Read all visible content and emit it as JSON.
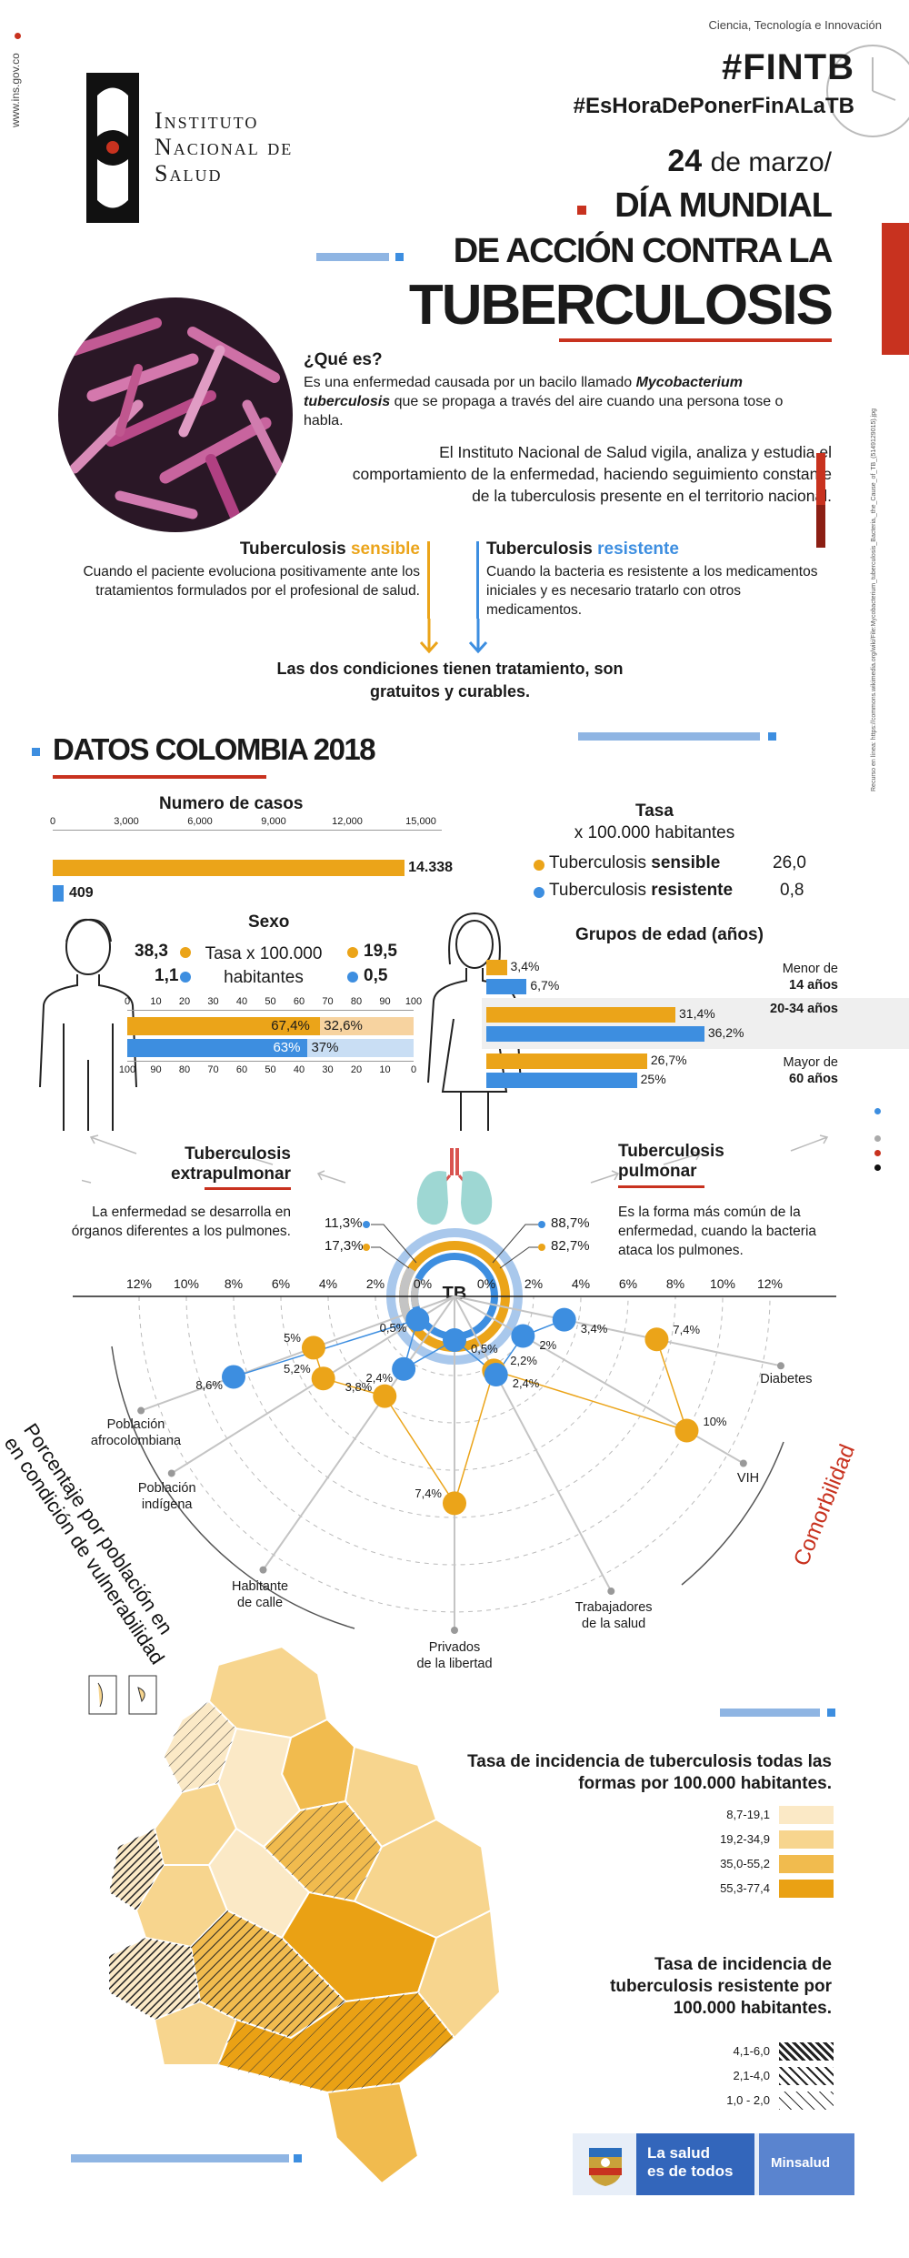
{
  "header": {
    "site_url": "www.ins.gov.co",
    "category": "Ciencia, Tecnología e Innovación",
    "hashtag_main": "#FINTB",
    "hashtag_secondary": "#EsHoraDePonerFinALaTB",
    "logo_line1": "Instituto",
    "logo_line2": "Nacional de",
    "logo_line3": "Salud",
    "date_day": "24",
    "date_month": "de marzo/",
    "title_line1": "DÍA MUNDIAL",
    "title_line2": "DE ACCIÓN CONTRA LA",
    "title_line3": "TUBERCULOSIS",
    "image_credit": "Recurso en línea: https://commons.wikimedia.org/wiki/File:Mycobacterium_tuberculosis_Bacteria,_the_Cause_of_TB_(5149129015).jpg"
  },
  "intro": {
    "question": "¿Qué es?",
    "definition_pre": "Es una enfermedad causada por un bacilo llamado ",
    "definition_italic": "Mycobacterium tuberculosis",
    "definition_post": " que se propaga a través del aire cuando una persona tose o habla.",
    "ins_text": "El Instituto Nacional de Salud vigila, analiza y estudia el comportamiento de la enfermedad, haciendo seguimiento constante de la tuberculosis presente en el territorio nacional."
  },
  "types": {
    "sensible_title_a": "Tuberculosis ",
    "sensible_title_b": "sensible",
    "sensible_text": "Cuando el paciente evoluciona positivamente ante los tratamientos formulados por el profesional de salud.",
    "resistente_title_a": "Tuberculosis ",
    "resistente_title_b": "resistente",
    "resistente_text": "Cuando la bacteria es resistente  a los medicamentos iniciales y es necesario tratarlo con otros medicamentos.",
    "conclusion": "Las dos condiciones tienen tratamiento, son gratuitos y curables."
  },
  "section_title": "DATOS COLOMBIA 2018",
  "colors": {
    "orange": "#eba419",
    "blue": "#3d8ee0",
    "red": "#c8321f",
    "teal": "#9ed7d3"
  },
  "cases": {
    "title": "Numero  de casos",
    "ticks": [
      "0",
      "3,000",
      "6,000",
      "9,000",
      "12,000",
      "15,000"
    ],
    "sensible_value": "14.338",
    "resistente_value": "409",
    "sensible_num": 14338,
    "resistente_num": 409,
    "max": 15000
  },
  "rate": {
    "title_line1": "Tasa",
    "title_line2": "x 100.000 habitantes",
    "sensible_label_a": "Tuberculosis ",
    "sensible_label_b": "sensible",
    "sensible_value": "26,0",
    "resistente_label_a": "Tuberculosis ",
    "resistente_label_b": "resistente",
    "resistente_value": "0,8"
  },
  "sex": {
    "title": "Sexo",
    "center_line1": "Tasa x 100.000",
    "center_line2": "habitantes",
    "male_sensible": "38,3",
    "male_resistente": "1,1",
    "female_sensible": "19,5",
    "female_resistente": "0,5",
    "ticks_top": [
      "0",
      "10",
      "20",
      "30",
      "40",
      "50",
      "60",
      "70",
      "80",
      "90",
      "100"
    ],
    "ticks_bottom": [
      "100",
      "90",
      "80",
      "70",
      "60",
      "50",
      "40",
      "30",
      "20",
      "10",
      "0"
    ],
    "sensible_left_label": "67,4%",
    "sensible_right_label": "32,6%",
    "resistente_left_label": "63%",
    "resistente_right_label": "37%",
    "sensible_left_pct": 67.4,
    "resistente_left_pct": 63
  },
  "age": {
    "title": "Grupos  de edad (años)",
    "groups": [
      {
        "label_a": "Menor de",
        "label_b": "14 años",
        "sensible": "3,4%",
        "resistente": "6,7%",
        "s": 3.4,
        "r": 6.7
      },
      {
        "label_a": "",
        "label_b": "20-34 años",
        "sensible": "31,4%",
        "resistente": "36,2%",
        "s": 31.4,
        "r": 36.2
      },
      {
        "label_a": "Mayor de",
        "label_b": "60 años",
        "sensible": "26,7%",
        "resistente": "25%",
        "s": 26.7,
        "r": 25
      }
    ],
    "max": 40
  },
  "location": {
    "extra_title_line1": "Tuberculosis",
    "extra_title_line2": "extrapulmonar",
    "extra_text": "La enfermedad se desarrolla en órganos diferentes a los pulmones.",
    "pulm_title_line1": "Tuberculosis",
    "pulm_title_line2": "pulmonar",
    "pulm_text": "Es la forma más común de la enfermedad, cuando la bacteria ataca los pulmones.",
    "extra_resistente": "11,3%",
    "extra_sensible": "17,3%",
    "pulm_resistente": "88,7%",
    "pulm_sensible": "82,7%",
    "center": "TB"
  },
  "radial": {
    "left_ticks": [
      "12%",
      "10%",
      "8%",
      "6%",
      "4%",
      "2%",
      "0%"
    ],
    "right_ticks": [
      "0%",
      "2%",
      "4%",
      "6%",
      "8%",
      "10%",
      "12%"
    ],
    "left_label_line1": "Porcentaje por población en",
    "left_label_line2": "en condición de vulnerabilidad",
    "right_label": "Comorbilidad",
    "categories": [
      {
        "name_a": "Población",
        "name_b": "afrocolombiana",
        "sensible": "5%",
        "resistente": "8,6%"
      },
      {
        "name_a": "Población",
        "name_b": "indígena",
        "sensible": "5,2%",
        "resistente": "0,5%"
      },
      {
        "name_a": "Habitante",
        "name_b": "de calle",
        "sensible": "3,8%",
        "resistente": "2,4%"
      },
      {
        "name_a": "Privados",
        "name_b": "de la libertad",
        "sensible": "7,4%",
        "resistente": "0,5%"
      },
      {
        "name_a": "Trabajadores",
        "name_b": "de la salud",
        "sensible": "2,2%",
        "resistente": "2,4%"
      },
      {
        "name_a": "VIH",
        "name_b": "",
        "sensible": "10%",
        "resistente": "2%"
      },
      {
        "name_a": "Diabetes",
        "name_b": "",
        "sensible": "7,4%",
        "resistente": "3,4%"
      }
    ]
  },
  "map_legend": {
    "title_all": "Tasa de incidencia de tuberculosis todas las formas por 100.000 habitantes.",
    "all_ranges": [
      "8,7-19,1",
      "19,2-34,9",
      "35,0-55,2",
      "55,3-77,4"
    ],
    "all_colors": [
      "#fbe9c6",
      "#f7d58e",
      "#f1bb4e",
      "#eaa114"
    ],
    "title_res": "Tasa de incidencia de tuberculosis resistente por 100.000 habitantes.",
    "res_ranges": [
      "4,1-6,0",
      "2,1-4,0",
      "1,0 - 2,0"
    ]
  },
  "footer": {
    "slogan_line1": "La salud",
    "slogan_line2": "es de todos",
    "ministry": "Minsalud"
  }
}
